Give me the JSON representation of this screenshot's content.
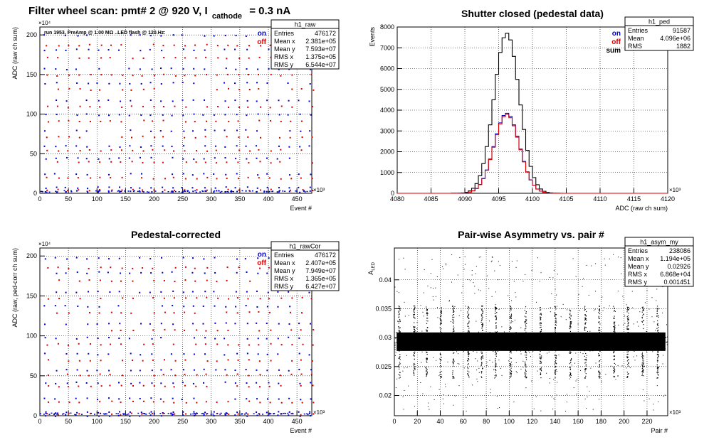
{
  "page_title": {
    "main": "Filter wheel scan: pmt#   2 @   920 V, I",
    "sub": "cathode",
    "tail": "= 0.3 nA"
  },
  "chart_data": [
    {
      "type": "scatter",
      "title": "",
      "annotation": "run 1953, PreAmp @ 1.00 MΩ ..LED flash @  120.Hz:",
      "xlabel": "Event #",
      "ylabel": "ADC (raw ch sum)",
      "x_exponent": "×10³",
      "y_exponent": "×10⁴",
      "xlim": [
        0,
        476
      ],
      "ylim": [
        0,
        210
      ],
      "xticks": [
        "0",
        "50",
        "100",
        "150",
        "200",
        "250",
        "300",
        "350",
        "400",
        "450"
      ],
      "yticks": [
        "0",
        "50",
        "100",
        "150",
        "200"
      ],
      "legend": [
        {
          "label": "on",
          "color": "#0000cc"
        },
        {
          "label": "off",
          "color": "#dd0000"
        }
      ],
      "stats": {
        "name": "h1_raw",
        "rows": [
          [
            "Entries",
            "476172"
          ],
          [
            "Mean x",
            "2.381e+05"
          ],
          [
            "Mean y",
            "7.593e+07"
          ],
          [
            "RMS x",
            "1.375e+05"
          ],
          [
            "RMS y",
            "6.544e+07"
          ]
        ]
      },
      "series": [
        {
          "name": "on",
          "levels": [
            200,
            182,
            158,
            140,
            118,
            100,
            80,
            60,
            45,
            25,
            8,
            3
          ]
        },
        {
          "name": "off",
          "levels": [
            188,
            172,
            150,
            132,
            110,
            92,
            72,
            55,
            40,
            20,
            5
          ]
        }
      ]
    },
    {
      "type": "line",
      "title": "Shutter closed (pedestal data)",
      "xlabel": "ADC (raw ch sum)",
      "ylabel": "Events",
      "x_exponent": "×10³",
      "xlim": [
        4080,
        4120
      ],
      "ylim": [
        0,
        8000
      ],
      "xticks": [
        "4080",
        "4085",
        "4090",
        "4095",
        "4100",
        "4105",
        "4110",
        "4115",
        "4120"
      ],
      "yticks": [
        "0",
        "1000",
        "2000",
        "3000",
        "4000",
        "5000",
        "6000",
        "7000",
        "8000"
      ],
      "legend": [
        {
          "label": "on",
          "color": "#0000cc"
        },
        {
          "label": "off",
          "color": "#dd0000"
        },
        {
          "label": "sum",
          "color": "#000000"
        }
      ],
      "stats": {
        "name": "h1_ped",
        "rows": [
          [
            "Entries",
            "91587"
          ],
          [
            "Mean",
            "4.096e+06"
          ],
          [
            "RMS",
            "1882"
          ]
        ]
      },
      "mean": 4096.2,
      "sigma": 1.88,
      "series": [
        {
          "name": "sum",
          "peak": 7700
        },
        {
          "name": "on",
          "peak": 3850
        },
        {
          "name": "off",
          "peak": 3850
        }
      ]
    },
    {
      "type": "scatter",
      "title": "Pedestal-corrected",
      "xlabel": "Event #",
      "ylabel": "ADC (raw, ped-corr ch sum)",
      "x_exponent": "×10³",
      "y_exponent": "×10⁴",
      "xlim": [
        0,
        476
      ],
      "ylim": [
        0,
        210
      ],
      "xticks": [
        "0",
        "50",
        "100",
        "150",
        "200",
        "250",
        "300",
        "350",
        "400",
        "450"
      ],
      "yticks": [
        "0",
        "50",
        "100",
        "150",
        "200"
      ],
      "legend": [
        {
          "label": "on",
          "color": "#0000cc"
        },
        {
          "label": "off",
          "color": "#dd0000"
        }
      ],
      "stats": {
        "name": "h1_rawCor",
        "rows": [
          [
            "Entries",
            "476172"
          ],
          [
            "Mean x",
            "2.407e+05"
          ],
          [
            "Mean y",
            "7.949e+07"
          ],
          [
            "RMS x",
            "1.365e+05"
          ],
          [
            "RMS y",
            "6.427e+07"
          ]
        ]
      },
      "series": [
        {
          "name": "on",
          "levels": [
            198,
            180,
            156,
            138,
            116,
            98,
            78,
            58,
            42,
            22,
            5,
            1
          ]
        },
        {
          "name": "off",
          "levels": [
            186,
            170,
            148,
            130,
            108,
            90,
            70,
            52,
            38,
            18,
            3
          ]
        }
      ]
    },
    {
      "type": "scatter",
      "title": "Pair-wise Asymmetry vs. pair #",
      "xlabel": "Pair #",
      "ylabel": "A_LED",
      "x_exponent": "×10³",
      "xlim": [
        0,
        238
      ],
      "ylim": [
        0.0165,
        0.0455
      ],
      "xticks": [
        "0",
        "20",
        "40",
        "60",
        "80",
        "100",
        "120",
        "140",
        "160",
        "180",
        "200",
        "220"
      ],
      "yticks": [
        "0.02",
        "0.025",
        "0.03",
        "0.035",
        "0.04"
      ],
      "stats": {
        "name": "h1_asym_my",
        "rows": [
          [
            "Entries",
            "238086"
          ],
          [
            "Mean x",
            "1.194e+05"
          ],
          [
            "Mean y",
            "0.02926"
          ],
          [
            "RMS x",
            "6.868e+04"
          ],
          [
            "RMS y",
            "0.001451"
          ]
        ]
      },
      "band_center": 0.0293,
      "band_halfwidth": 0.0016,
      "spike_pairs": [
        4,
        17,
        28,
        40,
        51,
        64,
        76,
        88,
        101,
        114,
        127,
        140,
        153,
        166,
        178,
        191,
        203,
        216,
        229
      ]
    }
  ]
}
